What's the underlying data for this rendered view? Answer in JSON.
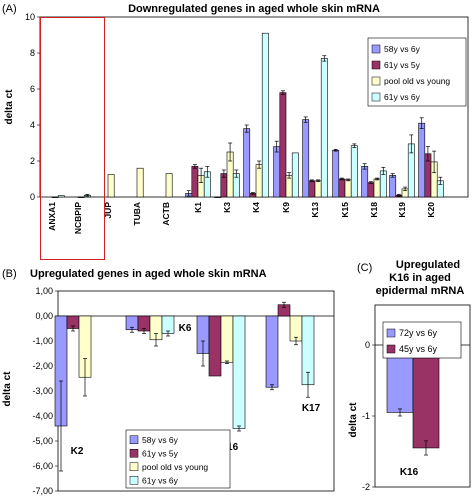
{
  "chart_data": [
    {
      "type": "bar",
      "panel_label": "(A)",
      "title": "Downregulated genes in aged whole skin mRNA",
      "ylabel": "delta ct",
      "ylim": [
        0,
        10
      ],
      "yticks": [
        0,
        2,
        4,
        6,
        8,
        10
      ],
      "grid": false,
      "legend_position": "top-right",
      "highlight_box_categories": [
        "ANXA1",
        "NCBPIP"
      ],
      "categories": [
        "ANXA1",
        "NCBPIP",
        "JUP",
        "TUBA",
        "ACTB",
        "K1",
        "K3",
        "K4",
        "K9",
        "K13",
        "K15",
        "K18",
        "K19",
        "K20"
      ],
      "series": [
        {
          "name": "58y vs 6y",
          "color": "#9999ff",
          "values": [
            null,
            null,
            null,
            null,
            null,
            0.2,
            0,
            3.8,
            2.8,
            4.3,
            2.6,
            1.7,
            1.2,
            4.1
          ],
          "errors": [
            0,
            0,
            0,
            0,
            0,
            0.15,
            0,
            0.2,
            0.3,
            0.15,
            0.05,
            0.15,
            0.1,
            0.3
          ]
        },
        {
          "name": "61y vs 5y",
          "color": "#993366",
          "values": [
            null,
            null,
            null,
            null,
            null,
            1.7,
            1.3,
            0.2,
            5.8,
            0.9,
            1.0,
            0.8,
            0.1,
            2.4
          ],
          "errors": [
            0,
            0,
            0,
            0,
            0,
            0.1,
            0.2,
            0.05,
            0.1,
            0.05,
            0.05,
            0.05,
            0.05,
            0.4
          ]
        },
        {
          "name": "pool old vs young",
          "color": "#ffffcc",
          "values": [
            0,
            0,
            1.25,
            1.6,
            1.3,
            1.2,
            2.5,
            1.8,
            1.2,
            0.9,
            0.95,
            1.0,
            0.45,
            1.95
          ],
          "errors": [
            0,
            0,
            0,
            0,
            0,
            0.4,
            0.5,
            0.2,
            0.15,
            0.05,
            0.05,
            0.05,
            0.1,
            0.6
          ]
        },
        {
          "name": "61y vs 6y",
          "color": "#ccffff",
          "values": [
            0.08,
            0.1,
            null,
            null,
            null,
            1.4,
            1.3,
            9.1,
            2.45,
            7.7,
            2.85,
            1.45,
            2.95,
            0.9
          ],
          "errors": [
            0,
            0.05,
            0,
            0,
            0,
            0.3,
            0.2,
            0,
            0,
            0.15,
            0.1,
            0.2,
            0.5,
            0.2
          ]
        }
      ]
    },
    {
      "type": "bar",
      "panel_label": "(B)",
      "title": "Upregulated genes in aged whole skin mRNA",
      "ylabel": "delta ct",
      "ylim": [
        -7,
        1
      ],
      "yticks": [
        "1,00",
        "0,00",
        "-1,00",
        "-2,00",
        "-3,00",
        "-4,00",
        "-5,00",
        "-6,00",
        "-7,00"
      ],
      "grid": false,
      "legend_position": "bottom-left",
      "categories": [
        "K2",
        "K6",
        "K16",
        "K17"
      ],
      "series": [
        {
          "name": "58y vs 6y",
          "color": "#9999ff",
          "values": [
            -4.4,
            -0.55,
            -1.5,
            -2.85
          ],
          "errors": [
            1.8,
            0.1,
            0.5,
            0.1
          ]
        },
        {
          "name": "61y vs 5y",
          "color": "#993366",
          "values": [
            -0.5,
            -0.6,
            -2.4,
            0.45
          ],
          "errors": [
            0.1,
            0.1,
            0,
            0.1
          ]
        },
        {
          "name": "pool old vs young",
          "color": "#ffffcc",
          "values": [
            -2.45,
            -0.95,
            -1.85,
            -1.0
          ],
          "errors": [
            0.75,
            0.25,
            0.05,
            0.15
          ]
        },
        {
          "name": "61y vs 6y",
          "color": "#ccffff",
          "values": [
            null,
            -0.7,
            -4.5,
            -2.75
          ],
          "errors": [
            0,
            0.1,
            0.1,
            0.5
          ]
        }
      ]
    },
    {
      "type": "bar",
      "panel_label": "(C)",
      "title": "Upregulated K16 in aged epidermal mRNA",
      "ylabel": "delta ct",
      "ylim": [
        -2,
        0
      ],
      "yticks": [
        0,
        -1,
        -2
      ],
      "grid": false,
      "legend_position": "top",
      "categories": [
        "K16"
      ],
      "series": [
        {
          "name": "72y vs 6y",
          "color": "#9999ff",
          "values": [
            -0.95
          ],
          "errors": [
            0.05
          ]
        },
        {
          "name": "45y vs 6y",
          "color": "#993366",
          "values": [
            -1.45
          ],
          "errors": [
            0.1
          ]
        }
      ]
    }
  ]
}
